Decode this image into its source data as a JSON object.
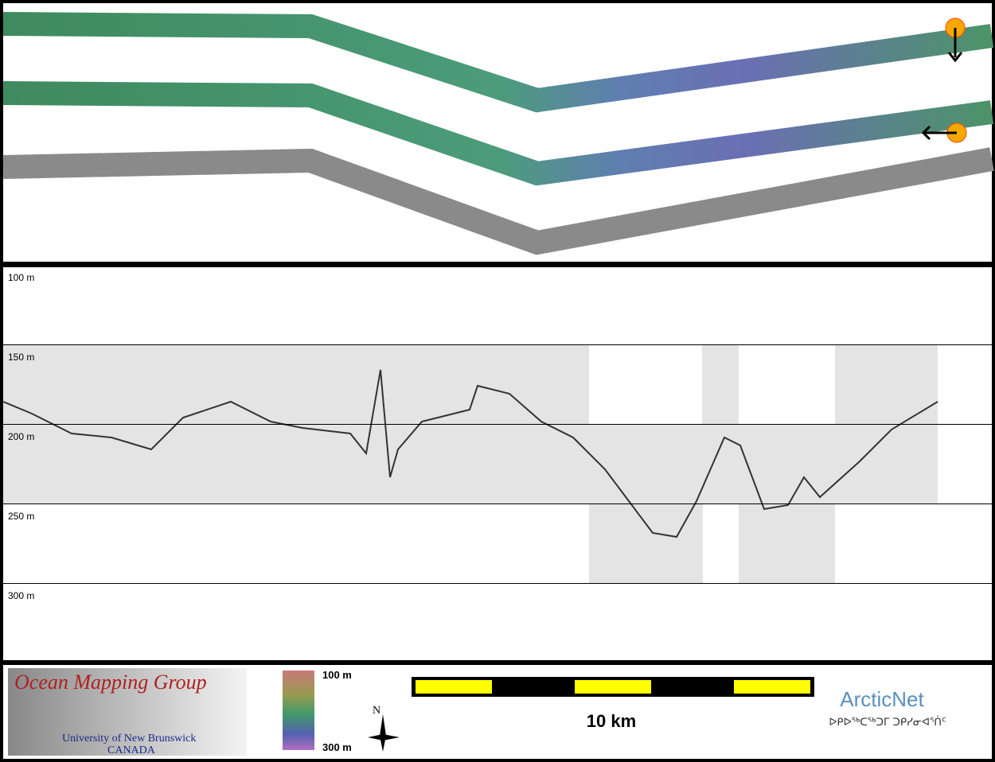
{
  "profile": {
    "depth_labels": [
      "100 m",
      "150 m",
      "200 m",
      "250 m",
      "300 m"
    ]
  },
  "footer": {
    "logo": {
      "title": "Ocean Mapping Group",
      "line1": "University of New Brunswick",
      "line2": "CANADA"
    },
    "colorbar": {
      "top": "100 m",
      "bottom": "300 m"
    },
    "north": "N",
    "scale": "10 km",
    "partner": {
      "name": "ArcticNet",
      "syllabics": "ᐅᑭᐅᖅᑕᖅᑐᒥ ᑐᑭᓯᓂᐊᕐᑏᑦ"
    }
  }
}
